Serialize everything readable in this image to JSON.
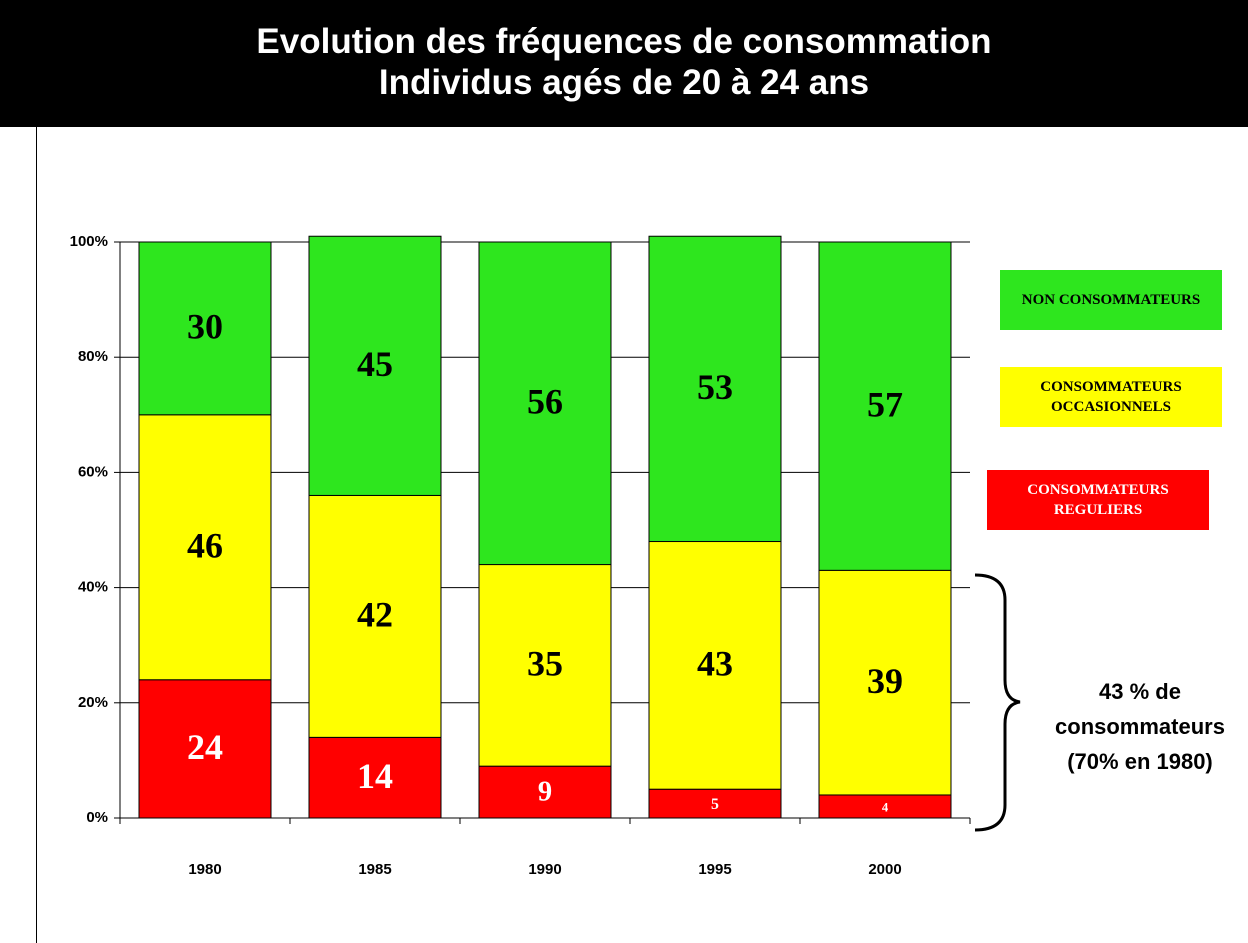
{
  "chart_data": {
    "type": "stacked_bar",
    "title": "Evolution des fréquences de consommation",
    "subtitle": "Individus agés de 20 à 24 ans",
    "categories": [
      "1980",
      "1985",
      "1990",
      "1995",
      "2000"
    ],
    "series": [
      {
        "name": "CONSOMMATEURS REGULIERS",
        "color": "#ff0000",
        "values": [
          24,
          14,
          9,
          5,
          4
        ]
      },
      {
        "name": "CONSOMMATEURS OCCASIONNELS",
        "color": "#ffff00",
        "values": [
          46,
          42,
          35,
          43,
          39
        ]
      },
      {
        "name": "NON CONSOMMATEURS",
        "color": "#2ee61e",
        "values": [
          30,
          45,
          56,
          53,
          57
        ]
      }
    ],
    "ylim": [
      0,
      100
    ],
    "yticks": [
      {
        "value": 0,
        "label": "0%"
      },
      {
        "value": 20,
        "label": "20%"
      },
      {
        "value": 40,
        "label": "40%"
      },
      {
        "value": 60,
        "label": "60%"
      },
      {
        "value": 80,
        "label": "80%"
      },
      {
        "value": 100,
        "label": "100%"
      }
    ],
    "grid": true,
    "legend": "right",
    "annotation": [
      "43 % de",
      "consommateurs",
      "(70% en 1980)"
    ]
  }
}
